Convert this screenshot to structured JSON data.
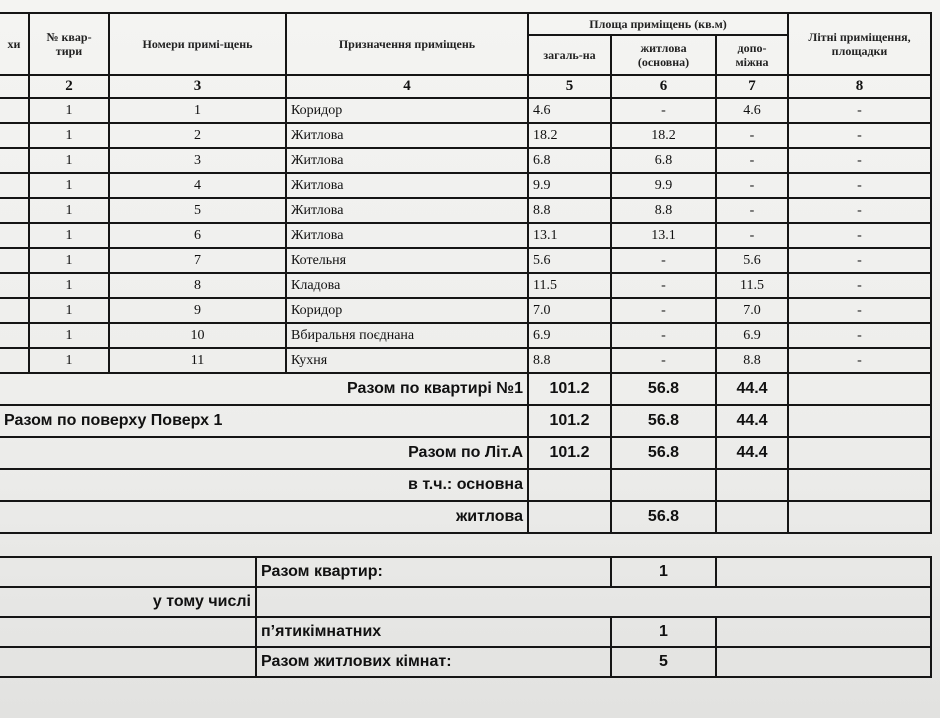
{
  "header": {
    "col1": "хи",
    "col2": "№ квар-тири",
    "col3": "Номери примі-щень",
    "col4": "Призначення приміщень",
    "area_group": "Площа приміщень (кв.м)",
    "col5": "загаль-на",
    "col6": "житлова (основна)",
    "col7": "допо-міжна",
    "col8": "Літні приміщення, площадки",
    "numbers": [
      "2",
      "3",
      "4",
      "5",
      "6",
      "7",
      "8"
    ]
  },
  "rows": [
    {
      "apt": "1",
      "room": "1",
      "purpose": "Коридор",
      "total": "4.6",
      "living": "-",
      "aux": "4.6",
      "summer": "-"
    },
    {
      "apt": "1",
      "room": "2",
      "purpose": "Житлова",
      "total": "18.2",
      "living": "18.2",
      "aux": "-",
      "summer": "-"
    },
    {
      "apt": "1",
      "room": "3",
      "purpose": "Житлова",
      "total": "6.8",
      "living": "6.8",
      "aux": "-",
      "summer": "-"
    },
    {
      "apt": "1",
      "room": "4",
      "purpose": "Житлова",
      "total": "9.9",
      "living": "9.9",
      "aux": "-",
      "summer": "-"
    },
    {
      "apt": "1",
      "room": "5",
      "purpose": "Житлова",
      "total": "8.8",
      "living": "8.8",
      "aux": "-",
      "summer": "-"
    },
    {
      "apt": "1",
      "room": "6",
      "purpose": "Житлова",
      "total": "13.1",
      "living": "13.1",
      "aux": "-",
      "summer": "-"
    },
    {
      "apt": "1",
      "room": "7",
      "purpose": "Котельня",
      "total": "5.6",
      "living": "-",
      "aux": "5.6",
      "summer": "-"
    },
    {
      "apt": "1",
      "room": "8",
      "purpose": "Кладова",
      "total": "11.5",
      "living": "-",
      "aux": "11.5",
      "summer": "-"
    },
    {
      "apt": "1",
      "room": "9",
      "purpose": "Коридор",
      "total": "7.0",
      "living": "-",
      "aux": "7.0",
      "summer": "-"
    },
    {
      "apt": "1",
      "room": "10",
      "purpose": "Вбиральня поєднана",
      "total": "6.9",
      "living": "-",
      "aux": "6.9",
      "summer": "-"
    },
    {
      "apt": "1",
      "room": "11",
      "purpose": "Кухня",
      "total": "8.8",
      "living": "-",
      "aux": "8.8",
      "summer": "-"
    }
  ],
  "totals": {
    "apartment": {
      "label": "Разом по квартирі №1",
      "total": "101.2",
      "living": "56.8",
      "aux": "44.4"
    },
    "floor": {
      "label": "Разом по поверху Поверх 1",
      "total": "101.2",
      "living": "56.8",
      "aux": "44.4"
    },
    "lit": {
      "label": "Разом по Літ.А",
      "total": "101.2",
      "living": "56.8",
      "aux": "44.4"
    },
    "incl_main": {
      "label": "в т.ч.: основна"
    },
    "incl_living": {
      "label": "житлова",
      "living": "56.8"
    }
  },
  "summary": {
    "apartments_label": "Разом квартир:",
    "apartments_value": "1",
    "including_label": "у тому числі",
    "five_room_label": "п’ятикімнатних",
    "five_room_value": "1",
    "living_rooms_label": "Разом житлових кімнат:",
    "living_rooms_value": "5"
  }
}
